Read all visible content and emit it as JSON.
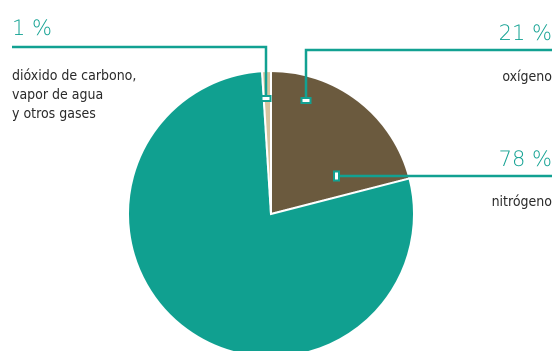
{
  "chart_data": {
    "type": "pie",
    "title": "",
    "slices": [
      {
        "key": "oxigeno",
        "value": 21,
        "value_label": "21 %",
        "labels": [
          "oxígeno"
        ],
        "color": "#6b5a3e"
      },
      {
        "key": "nitrogeno",
        "value": 78,
        "value_label": "78 %",
        "labels": [
          "nitrógeno"
        ],
        "color": "#10a090"
      },
      {
        "key": "otros",
        "value": 1,
        "value_label": "1 %",
        "labels": [
          "dióxido de carbono,",
          "vapor de agua",
          "y otros gases"
        ],
        "color": "#d7c4a0"
      }
    ],
    "accent_color": "#12a192"
  }
}
